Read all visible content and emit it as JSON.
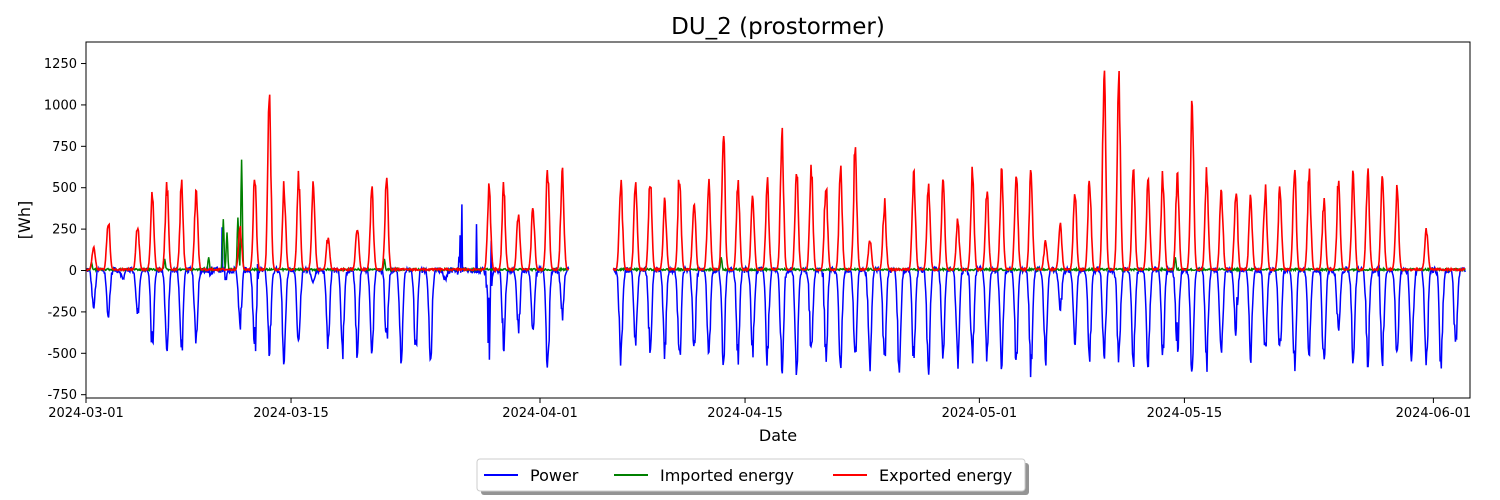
{
  "chart_data": {
    "type": "line",
    "title": "DU_2 (prostormer)",
    "xlabel": "Date",
    "ylabel": "[Wh]",
    "xlim": [
      "2024-03-01",
      "2024-06-03"
    ],
    "ylim": [
      -770,
      1380
    ],
    "x_ticks": [
      "2024-03-01",
      "2024-03-15",
      "2024-04-01",
      "2024-04-15",
      "2024-05-01",
      "2024-05-15",
      "2024-06-01"
    ],
    "y_ticks": [
      -750,
      -500,
      -250,
      0,
      250,
      500,
      750,
      1000,
      1250
    ],
    "grid": false,
    "legend_position": "bottom-center",
    "gap": [
      "2024-04-03",
      "2024-04-06"
    ],
    "series": [
      {
        "name": "Power",
        "color": "#0000ff",
        "daily_min": [
          [
            "2024-03-01",
            -260
          ],
          [
            "2024-03-02",
            -310
          ],
          [
            "2024-03-03",
            -60
          ],
          [
            "2024-03-04",
            -300
          ],
          [
            "2024-03-05",
            -520
          ],
          [
            "2024-03-06",
            -570
          ],
          [
            "2024-03-07",
            -560
          ],
          [
            "2024-03-08",
            -510
          ],
          [
            "2024-03-09",
            -40
          ],
          [
            "2024-03-10",
            -60
          ],
          [
            "2024-03-11",
            -400
          ],
          [
            "2024-03-12",
            -610
          ],
          [
            "2024-03-13",
            -540
          ],
          [
            "2024-03-14",
            -590
          ],
          [
            "2024-03-15",
            -560
          ],
          [
            "2024-03-16",
            -80
          ],
          [
            "2024-03-17",
            -510
          ],
          [
            "2024-03-18",
            -550
          ],
          [
            "2024-03-19",
            -560
          ],
          [
            "2024-03-20",
            -560
          ],
          [
            "2024-03-21",
            -480
          ],
          [
            "2024-03-22",
            -600
          ],
          [
            "2024-03-23",
            -560
          ],
          [
            "2024-03-24",
            -600
          ],
          [
            "2024-03-25",
            -70
          ],
          [
            "2024-03-26",
            -40
          ],
          [
            "2024-03-27",
            -30
          ],
          [
            "2024-03-28",
            -560
          ],
          [
            "2024-03-29",
            -550
          ],
          [
            "2024-03-30",
            -400
          ],
          [
            "2024-03-31",
            -400
          ],
          [
            "2024-04-01",
            -660
          ],
          [
            "2024-04-02",
            -300
          ],
          [
            "2024-04-06",
            -590
          ],
          [
            "2024-04-07",
            -520
          ],
          [
            "2024-04-08",
            -560
          ],
          [
            "2024-04-09",
            -560
          ],
          [
            "2024-04-10",
            -620
          ],
          [
            "2024-04-11",
            -560
          ],
          [
            "2024-04-12",
            -560
          ],
          [
            "2024-04-13",
            -590
          ],
          [
            "2024-04-14",
            -600
          ],
          [
            "2024-04-15",
            -560
          ],
          [
            "2024-04-16",
            -600
          ],
          [
            "2024-04-17",
            -670
          ],
          [
            "2024-04-18",
            -660
          ],
          [
            "2024-04-19",
            -570
          ],
          [
            "2024-04-20",
            -620
          ],
          [
            "2024-04-21",
            -640
          ],
          [
            "2024-04-22",
            -600
          ],
          [
            "2024-04-23",
            -640
          ],
          [
            "2024-04-24",
            -650
          ],
          [
            "2024-04-25",
            -660
          ],
          [
            "2024-04-26",
            -610
          ],
          [
            "2024-04-27",
            -660
          ],
          [
            "2024-04-28",
            -560
          ],
          [
            "2024-04-29",
            -610
          ],
          [
            "2024-04-30",
            -620
          ],
          [
            "2024-05-01",
            -600
          ],
          [
            "2024-05-02",
            -610
          ],
          [
            "2024-05-03",
            -620
          ],
          [
            "2024-05-04",
            -670
          ],
          [
            "2024-05-05",
            -600
          ],
          [
            "2024-05-06",
            -270
          ],
          [
            "2024-05-07",
            -500
          ],
          [
            "2024-05-08",
            -600
          ],
          [
            "2024-05-09",
            -620
          ],
          [
            "2024-05-10",
            -640
          ],
          [
            "2024-05-11",
            -630
          ],
          [
            "2024-05-12",
            -640
          ],
          [
            "2024-05-13",
            -560
          ],
          [
            "2024-05-14",
            -630
          ],
          [
            "2024-05-15",
            -670
          ],
          [
            "2024-05-16",
            -630
          ],
          [
            "2024-05-17",
            -620
          ],
          [
            "2024-05-18",
            -450
          ],
          [
            "2024-05-19",
            -600
          ],
          [
            "2024-05-20",
            -590
          ],
          [
            "2024-05-21",
            -570
          ],
          [
            "2024-05-22",
            -670
          ],
          [
            "2024-05-23",
            -580
          ],
          [
            "2024-05-24",
            -670
          ],
          [
            "2024-05-25",
            -440
          ],
          [
            "2024-05-26",
            -580
          ],
          [
            "2024-05-27",
            -600
          ],
          [
            "2024-05-28",
            -660
          ],
          [
            "2024-05-29",
            -600
          ],
          [
            "2024-05-30",
            -610
          ],
          [
            "2024-05-31",
            -650
          ],
          [
            "2024-06-01",
            -650
          ],
          [
            "2024-06-02",
            -520
          ]
        ],
        "daily_max": [
          [
            "2024-03-09",
            90
          ],
          [
            "2024-03-10",
            320
          ],
          [
            "2024-03-11",
            80
          ],
          [
            "2024-03-12",
            190
          ],
          [
            "2024-03-18",
            200
          ],
          [
            "2024-03-21",
            90
          ],
          [
            "2024-03-26",
            440
          ],
          [
            "2024-03-27",
            290
          ],
          [
            "2024-03-28",
            530
          ],
          [
            "2024-03-29",
            200
          ],
          [
            "2024-04-14",
            60
          ],
          [
            "2024-04-20",
            110
          ],
          [
            "2024-05-14",
            290
          ],
          [
            "2024-05-18",
            160
          ],
          [
            "2024-05-24",
            100
          ],
          [
            "2024-05-28",
            150
          ]
        ]
      },
      {
        "name": "Imported energy",
        "color": "#008000",
        "peaks": [
          [
            "2024-03-01",
            50
          ],
          [
            "2024-03-06",
            70
          ],
          [
            "2024-03-09",
            80
          ],
          [
            "2024-03-10",
            310
          ],
          [
            "2024-03-10",
            230
          ],
          [
            "2024-03-11",
            320
          ],
          [
            "2024-03-11",
            670
          ],
          [
            "2024-03-21",
            70
          ],
          [
            "2024-04-13",
            80
          ],
          [
            "2024-05-14",
            80
          ]
        ]
      },
      {
        "name": "Exported energy",
        "color": "#ff0000",
        "daily_max": [
          [
            "2024-03-01",
            160
          ],
          [
            "2024-03-02",
            330
          ],
          [
            "2024-03-04",
            300
          ],
          [
            "2024-03-05",
            500
          ],
          [
            "2024-03-06",
            560
          ],
          [
            "2024-03-07",
            570
          ],
          [
            "2024-03-08",
            510
          ],
          [
            "2024-03-11",
            290
          ],
          [
            "2024-03-12",
            610
          ],
          [
            "2024-03-13",
            1130
          ],
          [
            "2024-03-14",
            560
          ],
          [
            "2024-03-15",
            620
          ],
          [
            "2024-03-16",
            570
          ],
          [
            "2024-03-17",
            220
          ],
          [
            "2024-03-19",
            290
          ],
          [
            "2024-03-20",
            540
          ],
          [
            "2024-03-21",
            600
          ],
          [
            "2024-03-28",
            560
          ],
          [
            "2024-03-29",
            550
          ],
          [
            "2024-03-30",
            380
          ],
          [
            "2024-03-31",
            420
          ],
          [
            "2024-04-01",
            660
          ],
          [
            "2024-04-02",
            640
          ],
          [
            "2024-04-06",
            610
          ],
          [
            "2024-04-07",
            600
          ],
          [
            "2024-04-08",
            620
          ],
          [
            "2024-04-09",
            450
          ],
          [
            "2024-04-10",
            660
          ],
          [
            "2024-04-11",
            460
          ],
          [
            "2024-04-12",
            580
          ],
          [
            "2024-04-13",
            920
          ],
          [
            "2024-04-14",
            580
          ],
          [
            "2024-04-15",
            480
          ],
          [
            "2024-04-16",
            580
          ],
          [
            "2024-04-17",
            920
          ],
          [
            "2024-04-18",
            680
          ],
          [
            "2024-04-19",
            680
          ],
          [
            "2024-04-20",
            580
          ],
          [
            "2024-04-21",
            660
          ],
          [
            "2024-04-22",
            830
          ],
          [
            "2024-04-23",
            200
          ],
          [
            "2024-04-24",
            450
          ],
          [
            "2024-04-26",
            650
          ],
          [
            "2024-04-27",
            580
          ],
          [
            "2024-04-28",
            580
          ],
          [
            "2024-04-29",
            340
          ],
          [
            "2024-04-30",
            640
          ],
          [
            "2024-05-01",
            540
          ],
          [
            "2024-05-02",
            630
          ],
          [
            "2024-05-03",
            670
          ],
          [
            "2024-05-04",
            640
          ],
          [
            "2024-05-05",
            200
          ],
          [
            "2024-05-06",
            300
          ],
          [
            "2024-05-07",
            540
          ],
          [
            "2024-05-08",
            620
          ],
          [
            "2024-05-09",
            1280
          ],
          [
            "2024-05-10",
            1250
          ],
          [
            "2024-05-11",
            640
          ],
          [
            "2024-05-12",
            610
          ],
          [
            "2024-05-13",
            620
          ],
          [
            "2024-05-14",
            640
          ],
          [
            "2024-05-15",
            1080
          ],
          [
            "2024-05-16",
            680
          ],
          [
            "2024-05-17",
            540
          ],
          [
            "2024-05-18",
            550
          ],
          [
            "2024-05-19",
            500
          ],
          [
            "2024-05-20",
            550
          ],
          [
            "2024-05-21",
            580
          ],
          [
            "2024-05-22",
            670
          ],
          [
            "2024-05-23",
            640
          ],
          [
            "2024-05-24",
            450
          ],
          [
            "2024-05-25",
            610
          ],
          [
            "2024-05-26",
            630
          ],
          [
            "2024-05-27",
            660
          ],
          [
            "2024-05-28",
            620
          ],
          [
            "2024-05-29",
            540
          ],
          [
            "2024-05-31",
            270
          ]
        ]
      }
    ]
  }
}
